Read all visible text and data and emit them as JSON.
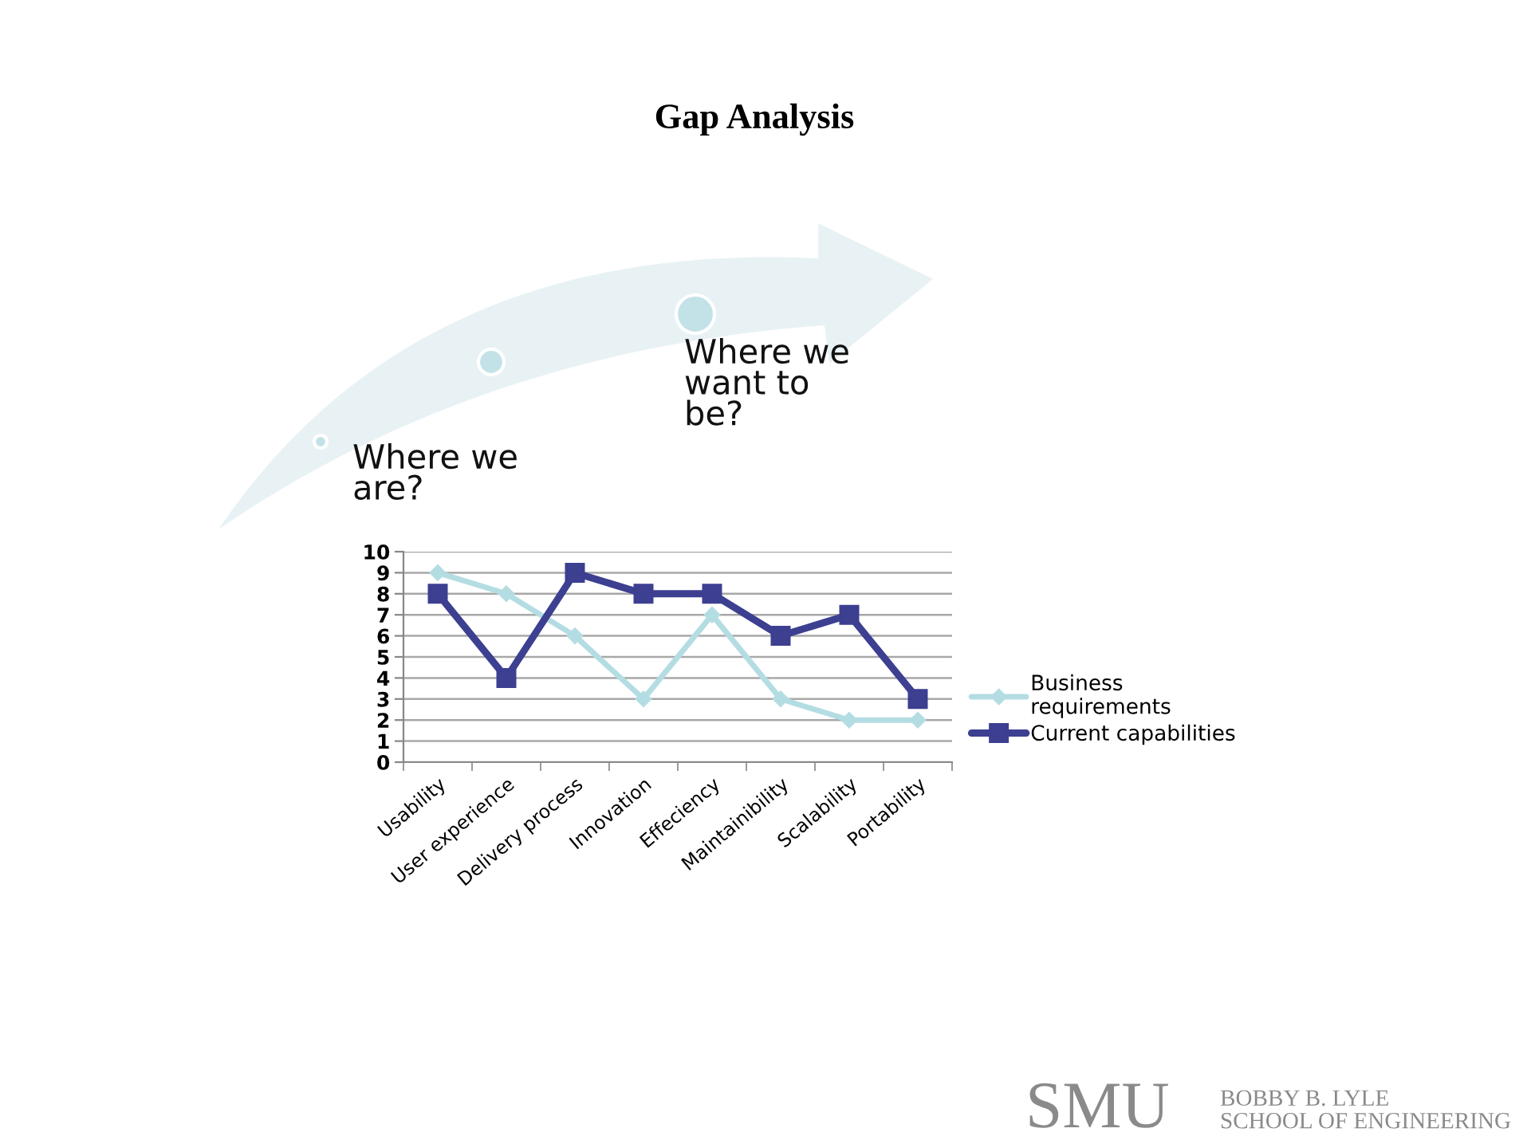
{
  "chart_data": {
    "type": "line",
    "title": "Gap Analysis",
    "categories": [
      "Usability",
      "User experience",
      "Delivery process",
      "Innovation",
      "Effeciency",
      "Maintainibility",
      "Scalability",
      "Portability"
    ],
    "series": [
      {
        "name": "Business\nrequirements",
        "color": "#b4dde3",
        "values": [
          9,
          8,
          6,
          3,
          7,
          3,
          2,
          2
        ],
        "marker": "diamond"
      },
      {
        "name": "Current capabilities",
        "color": "#3d3f91",
        "values": [
          8,
          4,
          9,
          8,
          8,
          6,
          7,
          3
        ],
        "marker": "square"
      }
    ],
    "ylim": [
      0,
      10
    ],
    "yticks": [
      0,
      1,
      2,
      3,
      4,
      5,
      6,
      7,
      8,
      9,
      10
    ],
    "grid": "y",
    "legend": "right",
    "line_style": "solid",
    "annotations": [
      "Where we\nare?",
      "Where we\nwant to\nbe?",
      "SMU",
      "BOBBY B. LYLE\nSCHOOL OF ENGINEERING"
    ]
  }
}
